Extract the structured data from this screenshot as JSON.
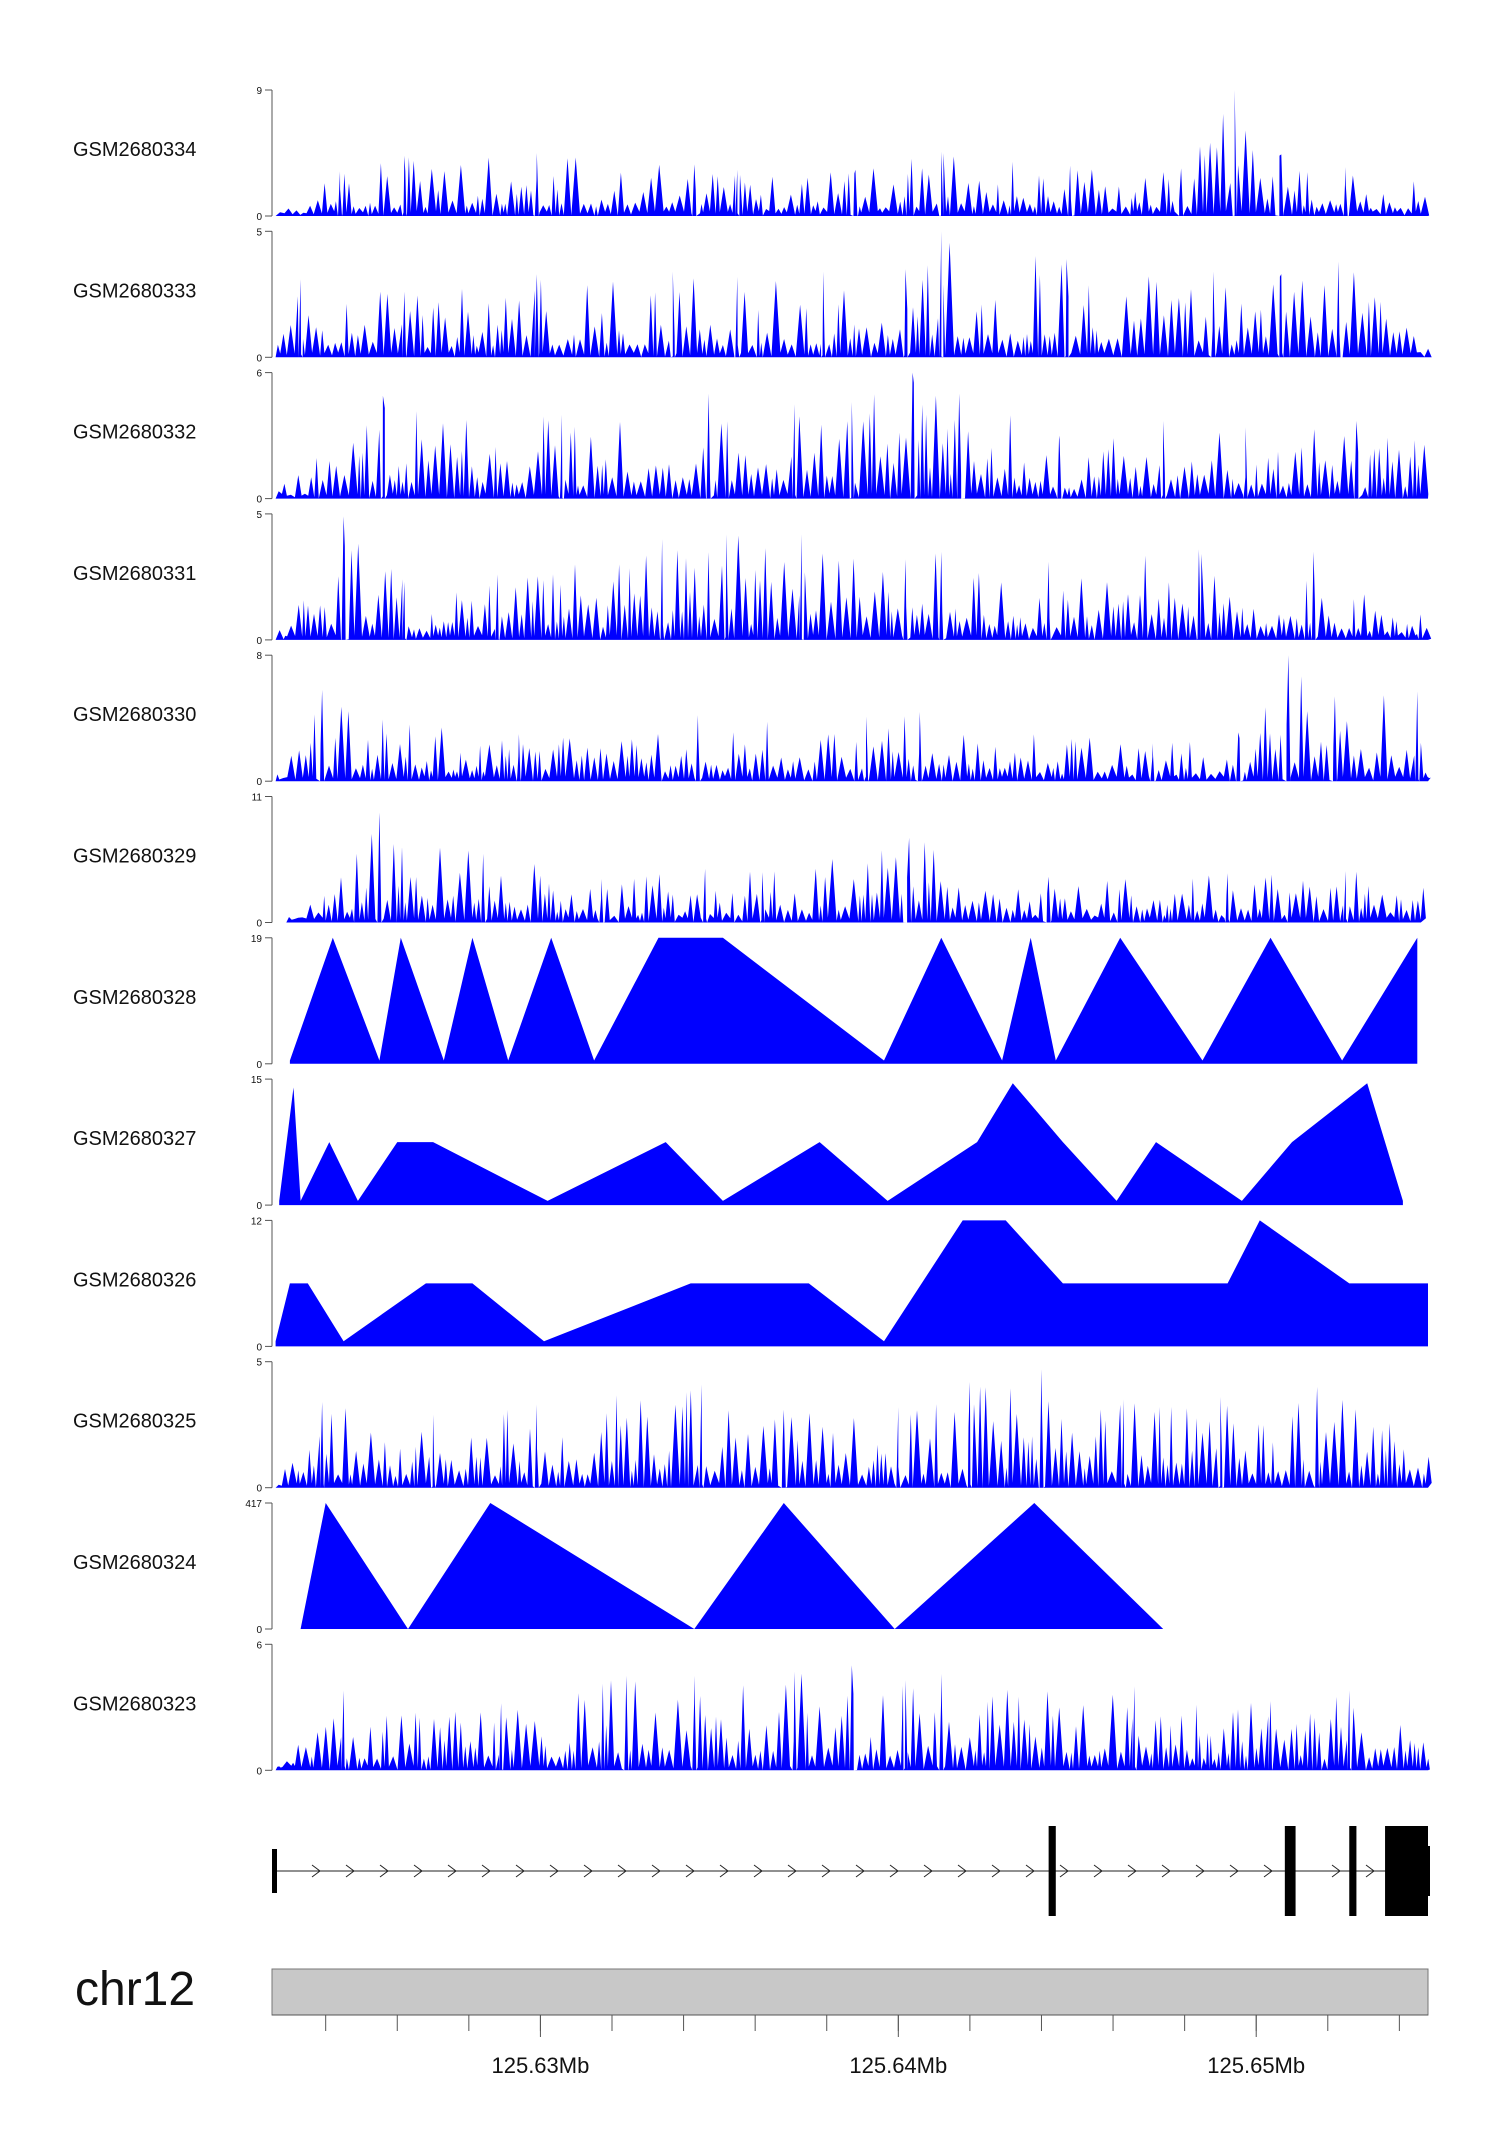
{
  "chart_data": {
    "type": "area",
    "chromosome": "chr12",
    "x_range": [
      125.6225,
      125.6548
    ],
    "x_ticks": [
      "125.63Mb",
      "125.64Mb",
      "125.65Mb"
    ],
    "x_tick_values": [
      125.63,
      125.64,
      125.65
    ],
    "fill_color": "#0000ff",
    "tracks": [
      {
        "name": "GSM2680334",
        "ylim": [
          0,
          9
        ],
        "x": [
          125.6226,
          125.6244,
          125.6262,
          125.6299,
          125.6343,
          125.6355,
          125.6388,
          125.6412,
          125.6448,
          125.6479,
          125.6494,
          125.6507,
          125.6525,
          125.6548
        ],
        "values": [
          0.5,
          3.2,
          4.3,
          4.5,
          3.7,
          3.3,
          3.3,
          4.6,
          3.6,
          3.4,
          9.0,
          4.4,
          3.5,
          2.3
        ]
      },
      {
        "name": "GSM2680333",
        "ylim": [
          0,
          5
        ],
        "x": [
          125.6226,
          125.6233,
          125.6262,
          125.6299,
          125.6337,
          125.6355,
          125.6379,
          125.6402,
          125.6412,
          125.6447,
          125.6488,
          125.6507,
          125.6523,
          125.6548
        ],
        "values": [
          0.8,
          3.1,
          2.6,
          3.3,
          3.4,
          3.2,
          3.4,
          3.5,
          5.0,
          3.9,
          3.4,
          3.3,
          3.8,
          0.8
        ]
      },
      {
        "name": "GSM2680332",
        "ylim": [
          0,
          6
        ],
        "x": [
          125.6226,
          125.6256,
          125.6306,
          125.6347,
          125.6371,
          125.6387,
          125.6404,
          125.6417,
          125.6445,
          125.6474,
          125.6497,
          125.6528,
          125.6548
        ],
        "values": [
          0.5,
          4.9,
          4.0,
          5.0,
          4.5,
          4.6,
          6.0,
          5.0,
          3.0,
          3.7,
          3.4,
          3.7,
          3.0
        ]
      },
      {
        "name": "GSM2680331",
        "ylim": [
          0,
          5
        ],
        "x": [
          125.6226,
          125.6245,
          125.6262,
          125.6288,
          125.6334,
          125.6352,
          125.6373,
          125.6402,
          125.6412,
          125.6442,
          125.6484,
          125.6516,
          125.6548
        ],
        "values": [
          0.5,
          4.9,
          2.3,
          2.6,
          4.0,
          4.2,
          4.2,
          3.2,
          3.5,
          3.1,
          3.6,
          3.5,
          1.0
        ]
      },
      {
        "name": "GSM2680330",
        "ylim": [
          0,
          8
        ],
        "x": [
          125.6226,
          125.6239,
          125.6294,
          125.6344,
          125.6391,
          125.6406,
          125.6471,
          125.6495,
          125.6509,
          125.6522,
          125.6545,
          125.6548
        ],
        "values": [
          0.5,
          5.8,
          3.0,
          4.2,
          4.1,
          4.4,
          2.4,
          3.1,
          8.0,
          5.4,
          5.7,
          1.0
        ]
      },
      {
        "name": "GSM2680329",
        "ylim": [
          0,
          11
        ],
        "x": [
          125.6229,
          125.6255,
          125.6284,
          125.6317,
          125.6346,
          125.6362,
          125.6403,
          125.6442,
          125.6492,
          125.6525,
          125.6546
        ],
        "values": [
          0.5,
          9.6,
          6.0,
          3.8,
          4.7,
          4.4,
          7.4,
          4.0,
          4.3,
          4.5,
          4.3
        ]
      },
      {
        "name": "GSM2680328",
        "ylim": [
          0,
          19
        ],
        "x": [
          125.623,
          125.6242,
          125.6255,
          125.6261,
          125.6273,
          125.6281,
          125.6291,
          125.6303,
          125.6315,
          125.6333,
          125.6351,
          125.6396,
          125.6412,
          125.6429,
          125.6437,
          125.6444,
          125.6462,
          125.6485,
          125.6504,
          125.6524,
          125.6545
        ],
        "values": [
          0.5,
          19.0,
          0.5,
          19.0,
          0.5,
          19.0,
          0.5,
          19.0,
          0.5,
          19.0,
          19.0,
          0.5,
          19.0,
          0.5,
          19.0,
          0.5,
          19.0,
          0.5,
          19.0,
          0.5,
          19.0
        ]
      },
      {
        "name": "GSM2680327",
        "ylim": [
          0,
          15
        ],
        "x": [
          125.6227,
          125.6231,
          125.6233,
          125.6241,
          125.6249,
          125.626,
          125.627,
          125.6302,
          125.6335,
          125.6351,
          125.6378,
          125.6397,
          125.6422,
          125.6432,
          125.6446,
          125.6461,
          125.6472,
          125.6496,
          125.651,
          125.6531,
          125.6541
        ],
        "values": [
          0.5,
          14.0,
          0.5,
          7.5,
          0.5,
          7.5,
          7.5,
          0.5,
          7.5,
          0.5,
          7.5,
          0.5,
          7.5,
          14.5,
          7.5,
          0.5,
          7.5,
          0.5,
          7.5,
          14.5,
          0.5
        ]
      },
      {
        "name": "GSM2680326",
        "ylim": [
          0,
          12
        ],
        "x": [
          125.6226,
          125.623,
          125.6235,
          125.6245,
          125.6268,
          125.6281,
          125.6301,
          125.6342,
          125.6375,
          125.6396,
          125.6418,
          125.643,
          125.6446,
          125.6467,
          125.6492,
          125.6501,
          125.6526,
          125.6548
        ],
        "values": [
          0.5,
          6.0,
          6.0,
          0.5,
          6.0,
          6.0,
          0.5,
          6.0,
          6.0,
          0.5,
          12.0,
          12.0,
          6.0,
          6.0,
          6.0,
          12.0,
          6.0,
          6.0
        ]
      },
      {
        "name": "GSM2680325",
        "ylim": [
          0,
          5
        ],
        "x": [
          125.6226,
          125.6239,
          125.627,
          125.6299,
          125.6345,
          125.6368,
          125.64,
          125.642,
          125.644,
          125.6463,
          125.649,
          125.6517,
          125.6548
        ],
        "values": [
          0.5,
          3.4,
          2.9,
          3.3,
          4.1,
          3.1,
          3.2,
          4.2,
          4.7,
          3.5,
          3.6,
          4.0,
          2.0
        ]
      },
      {
        "name": "GSM2680324",
        "ylim": [
          0,
          417
        ],
        "x": [
          125.6233,
          125.624,
          125.6263,
          125.6286,
          125.6343,
          125.6368,
          125.6399,
          125.6438,
          125.6474
        ],
        "values": [
          0,
          417,
          0,
          417,
          0,
          417,
          0,
          417,
          0
        ]
      },
      {
        "name": "GSM2680323",
        "ylim": [
          0,
          6
        ],
        "x": [
          125.6226,
          125.6245,
          125.6289,
          125.6324,
          125.6343,
          125.6371,
          125.6387,
          125.6402,
          125.6412,
          125.6466,
          125.6504,
          125.6526,
          125.6548
        ],
        "values": [
          0.5,
          3.8,
          3.2,
          4.5,
          4.5,
          4.7,
          5.0,
          4.3,
          4.6,
          4.0,
          3.3,
          3.8,
          2.7
        ]
      }
    ],
    "gene_model": {
      "strand": "+",
      "exons": [
        [
          125.6225,
          125.6226
        ],
        [
          125.6442,
          125.6444
        ],
        [
          125.6508,
          125.6511
        ],
        [
          125.6526,
          125.6528
        ],
        [
          125.6536,
          125.6548
        ]
      ]
    }
  }
}
